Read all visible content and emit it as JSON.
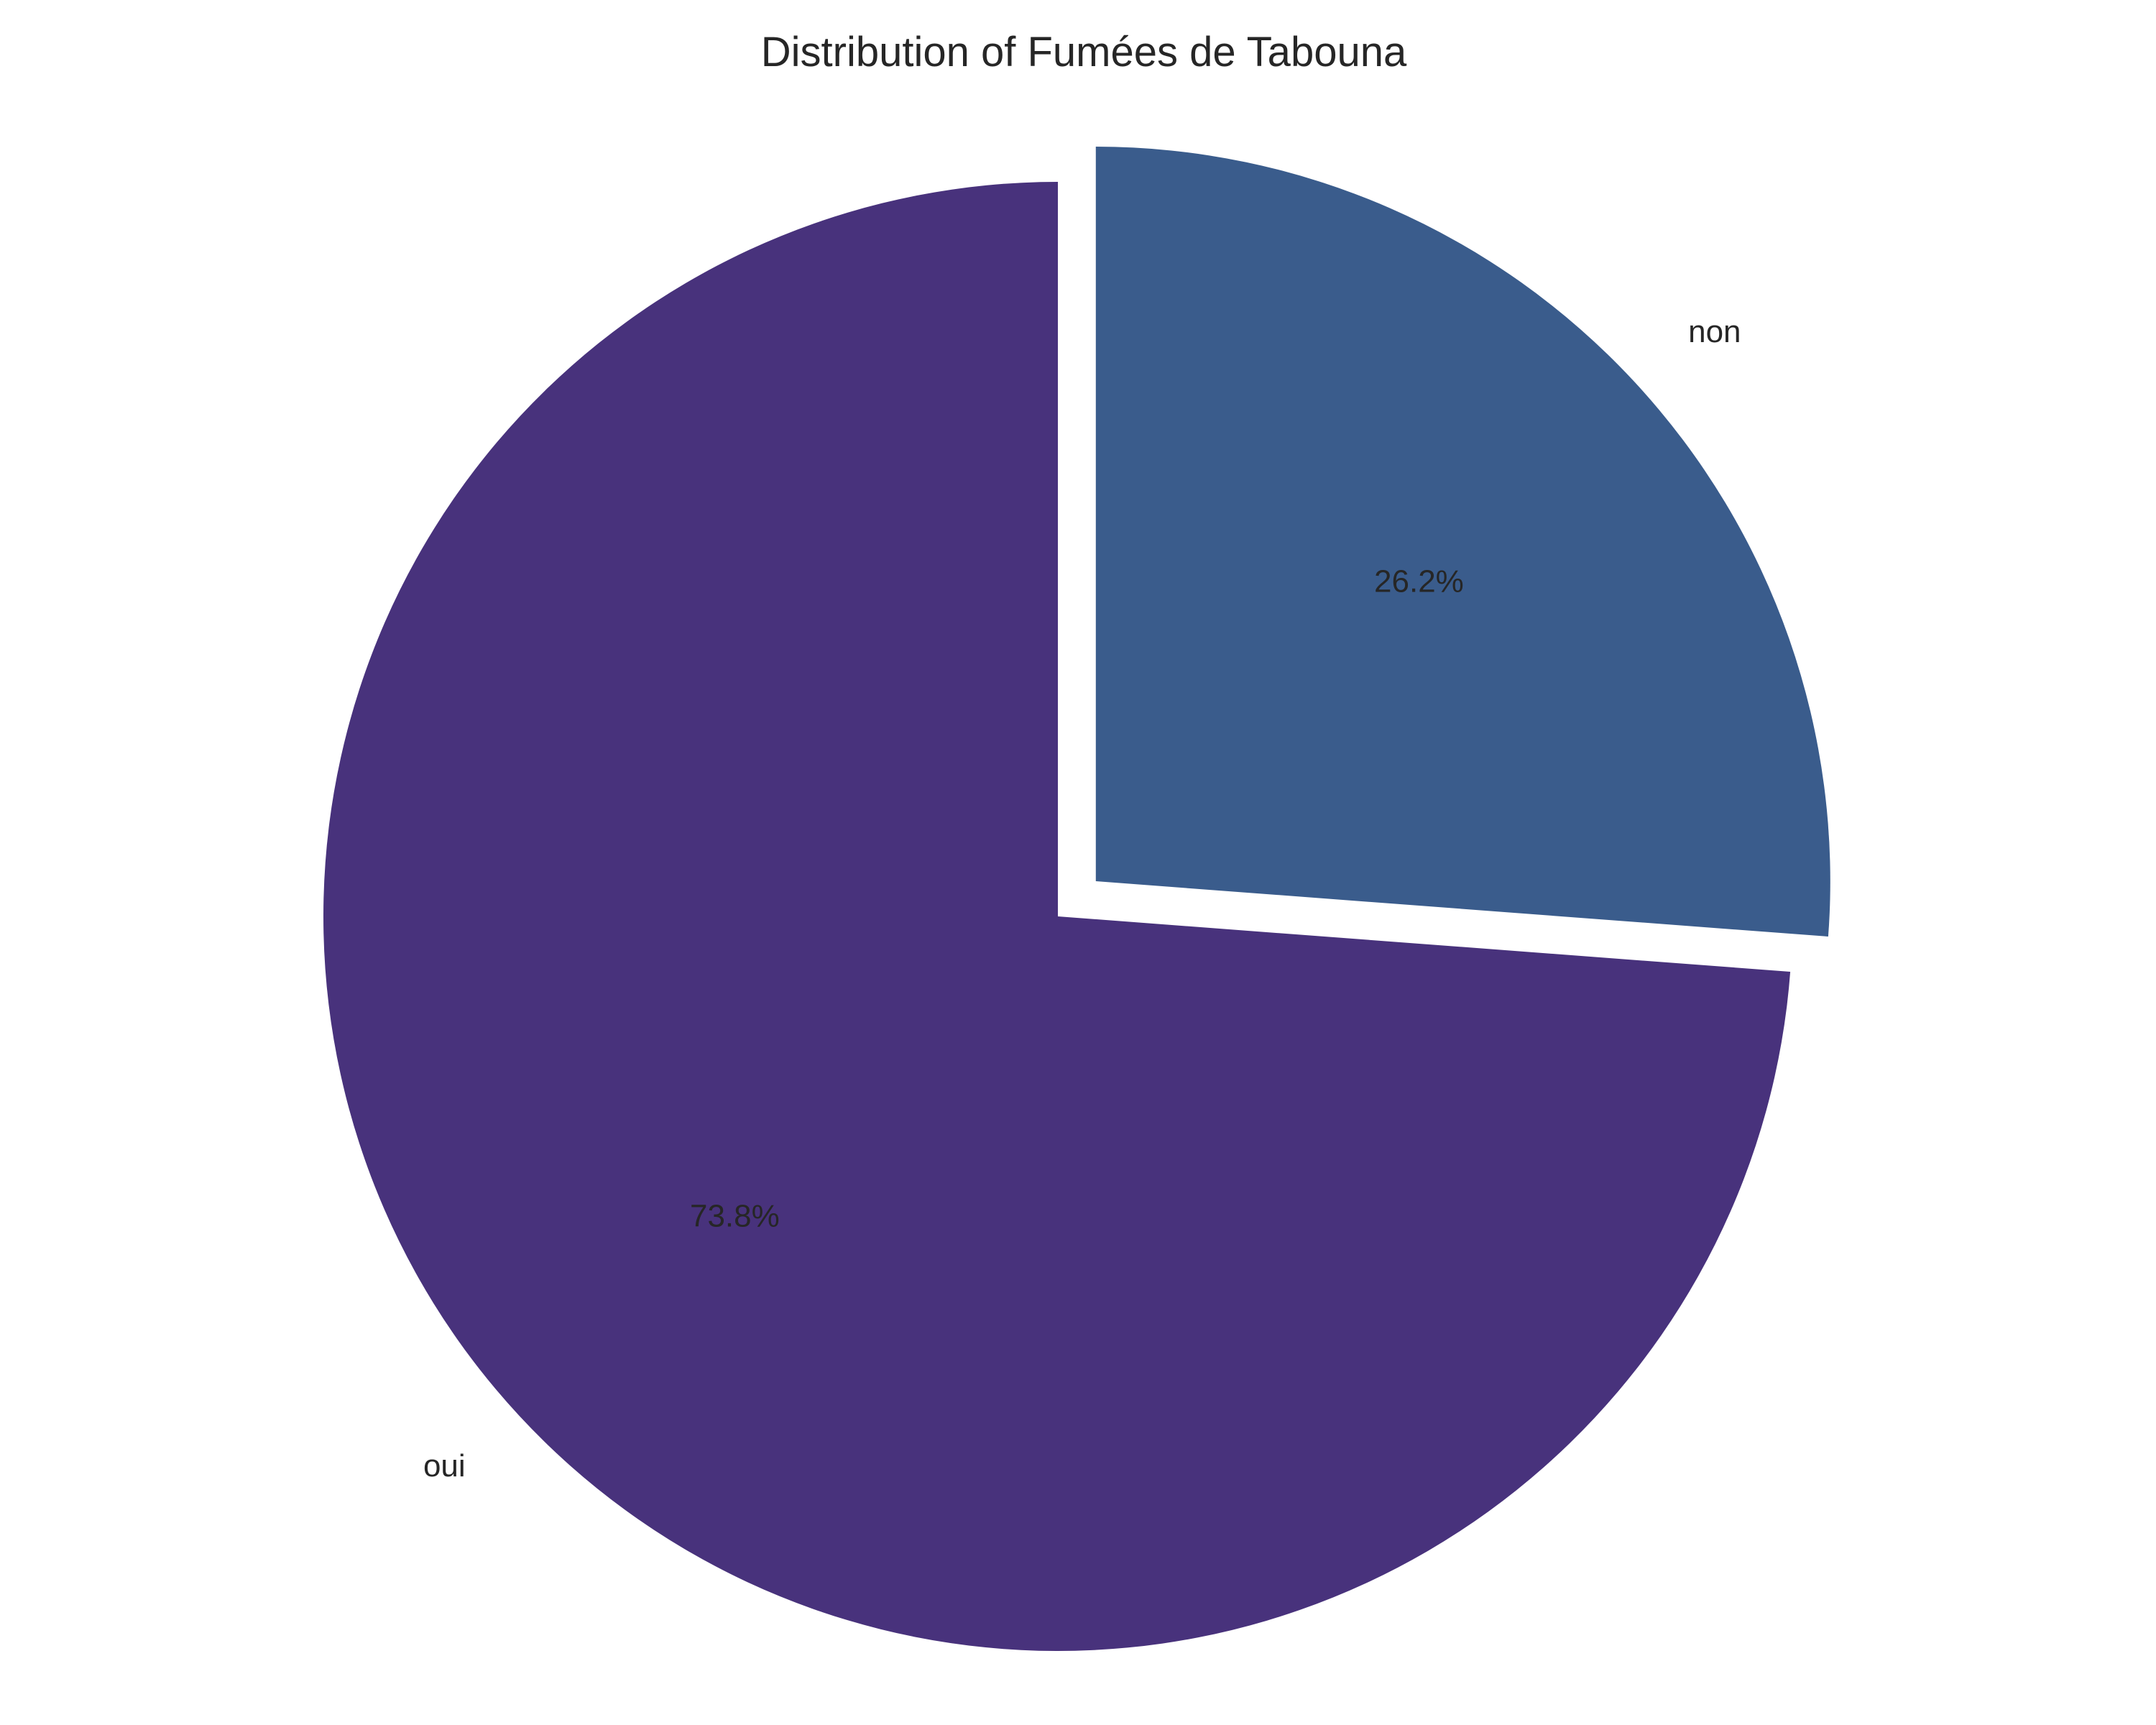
{
  "chart_data": {
    "type": "pie",
    "title": "Distribution of Fumées de Tabouna",
    "labels": [
      "oui",
      "non"
    ],
    "values": [
      73.8,
      26.2
    ],
    "percent_labels": [
      "73.8%",
      "26.2%"
    ],
    "colors": [
      "#48327c",
      "#3a5c8c"
    ],
    "exploded": [
      "non"
    ],
    "start_angle_deg": 90,
    "direction": "counterclockwise",
    "legend": "none"
  }
}
